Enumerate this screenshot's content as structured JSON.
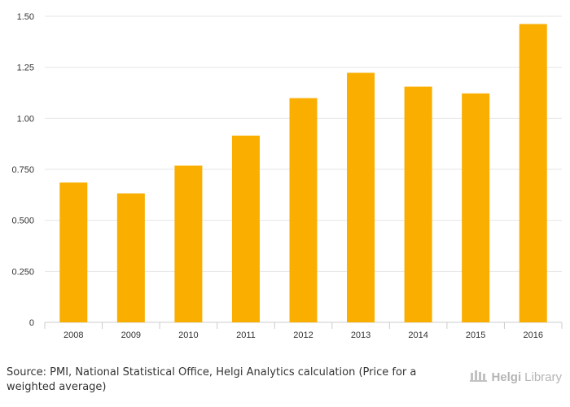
{
  "chart_data": {
    "type": "bar",
    "categories": [
      "2008",
      "2009",
      "2010",
      "2011",
      "2012",
      "2013",
      "2014",
      "2015",
      "2016"
    ],
    "values": [
      0.685,
      0.632,
      0.768,
      0.915,
      1.099,
      1.223,
      1.155,
      1.122,
      1.462
    ],
    "ylim": [
      0,
      1.5
    ],
    "yticks": [
      0,
      0.25,
      0.5,
      0.75,
      1.0,
      1.25,
      1.5
    ],
    "ytick_labels": [
      "0",
      "0.250",
      "0.500",
      "0.750",
      "1.00",
      "1.25",
      "1.50"
    ],
    "title": "",
    "xlabel": "",
    "ylabel": "",
    "grid": true,
    "bar_color": "#F9AE00"
  },
  "footer": {
    "source": "Source: PMI, National Statistical Office, Helgi Analytics calculation (Price for a weighted average)"
  },
  "logo": {
    "brand": "Helgi",
    "suffix": "Library",
    "icon": "helgi-building-icon"
  }
}
